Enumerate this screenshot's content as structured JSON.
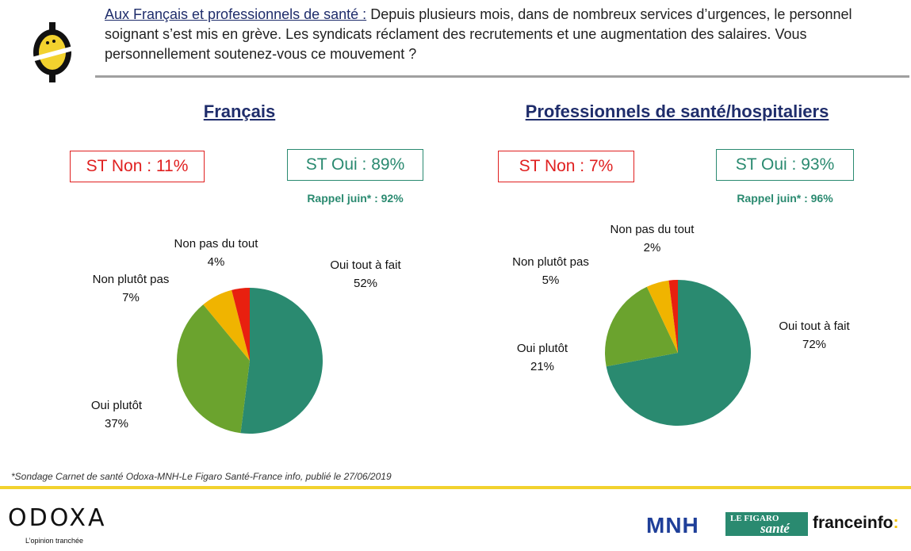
{
  "question": {
    "lead": "Aux Français et professionnels de santé :",
    "text": " Depuis plusieurs mois, dans de nombreux services d’urgences, le personnel soignant s’est mis en grève. Les syndicats réclament des recrutements et une augmentation des salaires. Vous personnellement soutenez-vous ce mouvement ?"
  },
  "panels": [
    {
      "title": "Français",
      "st_non": "ST Non : 11%",
      "st_oui": "ST Oui : 89%",
      "rappel": "Rappel juin* : 92%"
    },
    {
      "title": "Professionnels de santé/hospitaliers",
      "st_non": "ST Non : 7%",
      "st_oui": "ST Oui : 93%",
      "rappel": "Rappel juin* : 96%"
    }
  ],
  "colors": {
    "oui_tout_a_fait": "#2a8a70",
    "oui_plutot": "#6ba32e",
    "non_plutot_pas": "#f0b400",
    "non_pas_du_tout": "#e8200f",
    "st_non": "#e02020",
    "st_oui": "#2a8a70",
    "title": "#1f2d6b",
    "footer_rule": "#f2d22e"
  },
  "chart_data": [
    {
      "type": "pie",
      "categories": [
        "Oui tout à fait",
        "Oui plutôt",
        "Non plutôt pas",
        "Non pas du tout"
      ],
      "values": [
        52,
        37,
        7,
        4
      ],
      "value_labels": [
        "52%",
        "37%",
        "7%",
        "4%"
      ]
    },
    {
      "type": "pie",
      "categories": [
        "Oui tout à fait",
        "Oui plutôt",
        "Non plutôt pas",
        "Non pas du tout"
      ],
      "values": [
        72,
        21,
        5,
        2
      ],
      "value_labels": [
        "72%",
        "21%",
        "5%",
        "2%"
      ]
    }
  ],
  "footnote": "*Sondage Carnet de santé Odoxa-MNH-Le Figaro Santé-France info, publié le 27/06/2019",
  "footer": {
    "odoxa": "ODOXA",
    "odoxa_tagline": "L’opinion tranchée",
    "mnh": "MNH",
    "figaro_top": "LE FIGARO",
    "figaro_bottom": "santé",
    "franceinfo": "franceinfo",
    "franceinfo_colon": ":"
  }
}
